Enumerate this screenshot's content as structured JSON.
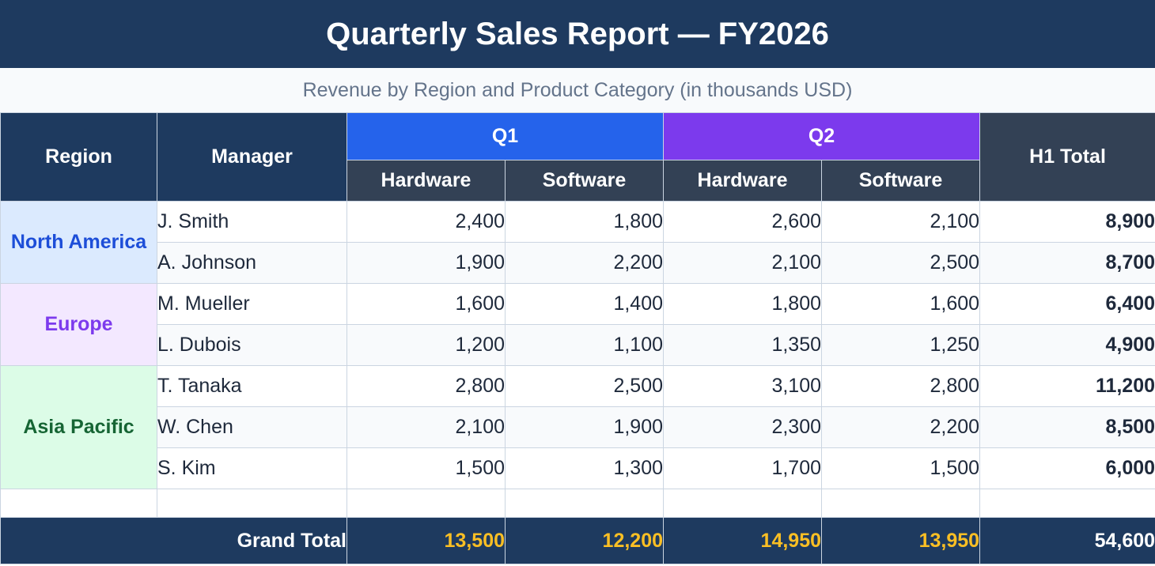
{
  "title": "Quarterly Sales Report — FY2026",
  "subtitle": "Revenue by Region and Product Category (in thousands USD)",
  "headers": {
    "region": "Region",
    "manager": "Manager",
    "q1": "Q1",
    "q2": "Q2",
    "h1_total": "H1 Total",
    "hardware": "Hardware",
    "software": "Software"
  },
  "regions": [
    {
      "name": "North America",
      "color": "#1d4ed8"
    },
    {
      "name": "Europe",
      "color": "#7c3aed"
    },
    {
      "name": "Asia Pacific",
      "color": "#166534"
    }
  ],
  "rows": [
    {
      "manager": "J. Smith",
      "q1_hw": "2,400",
      "q1_sw": "1,800",
      "q2_hw": "2,600",
      "q2_sw": "2,100",
      "total": "8,900"
    },
    {
      "manager": "A. Johnson",
      "q1_hw": "1,900",
      "q1_sw": "2,200",
      "q2_hw": "2,100",
      "q2_sw": "2,500",
      "total": "8,700"
    },
    {
      "manager": "M. Mueller",
      "q1_hw": "1,600",
      "q1_sw": "1,400",
      "q2_hw": "1,800",
      "q2_sw": "1,600",
      "total": "6,400"
    },
    {
      "manager": "L. Dubois",
      "q1_hw": "1,200",
      "q1_sw": "1,100",
      "q2_hw": "1,350",
      "q2_sw": "1,250",
      "total": "4,900"
    },
    {
      "manager": "T. Tanaka",
      "q1_hw": "2,800",
      "q1_sw": "2,500",
      "q2_hw": "3,100",
      "q2_sw": "2,800",
      "total": "11,200"
    },
    {
      "manager": "W. Chen",
      "q1_hw": "2,100",
      "q1_sw": "1,900",
      "q2_hw": "2,300",
      "q2_sw": "2,200",
      "total": "8,500"
    },
    {
      "manager": "S. Kim",
      "q1_hw": "1,500",
      "q1_sw": "1,300",
      "q2_hw": "1,700",
      "q2_sw": "1,500",
      "total": "6,000"
    }
  ],
  "grand_total": {
    "label": "Grand Total",
    "q1_hw": "13,500",
    "q1_sw": "12,200",
    "q2_hw": "14,950",
    "q2_sw": "13,950",
    "total": "54,600"
  },
  "colors": {
    "header_navy": "#1e3a5f",
    "q1_blue": "#2563eb",
    "q2_purple": "#7c3aed",
    "subheader_slate": "#334155",
    "grand_total_values": "#fbbf24"
  }
}
